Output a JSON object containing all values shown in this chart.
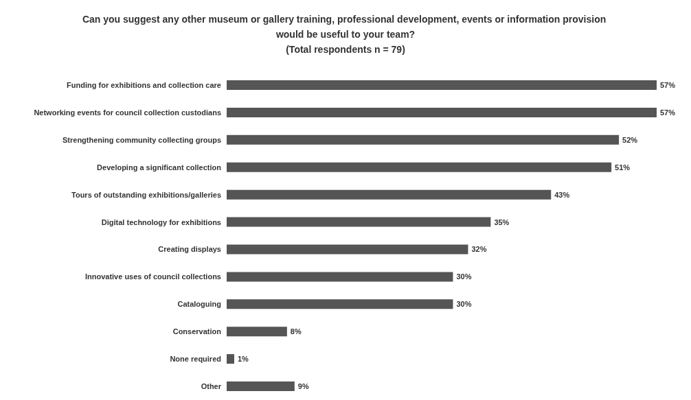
{
  "chart_data": {
    "type": "bar",
    "orientation": "horizontal",
    "title": "Can you suggest any other museum or gallery training, professional development, events or information provision would be useful to your team?",
    "subtitle": "(Total respondents n = 79)",
    "categories": [
      "Funding for exhibitions and collection care",
      "Networking events for council collection custodians",
      "Strengthening community collecting groups",
      "Developing a significant collection",
      "Tours of outstanding exhibitions/galleries",
      "Digital technology for exhibitions",
      "Creating displays",
      "Innovative uses of council collections",
      "Cataloguing",
      "Conservation",
      "None required",
      "Other"
    ],
    "values": [
      57,
      57,
      52,
      51,
      43,
      35,
      32,
      30,
      30,
      8,
      1,
      9
    ],
    "value_labels": [
      "57%",
      "57%",
      "52%",
      "51%",
      "43%",
      "35%",
      "32%",
      "30%",
      "30%",
      "8%",
      "1%",
      "9%"
    ],
    "color": "#555555",
    "grid": false,
    "tick_labels": "y"
  }
}
